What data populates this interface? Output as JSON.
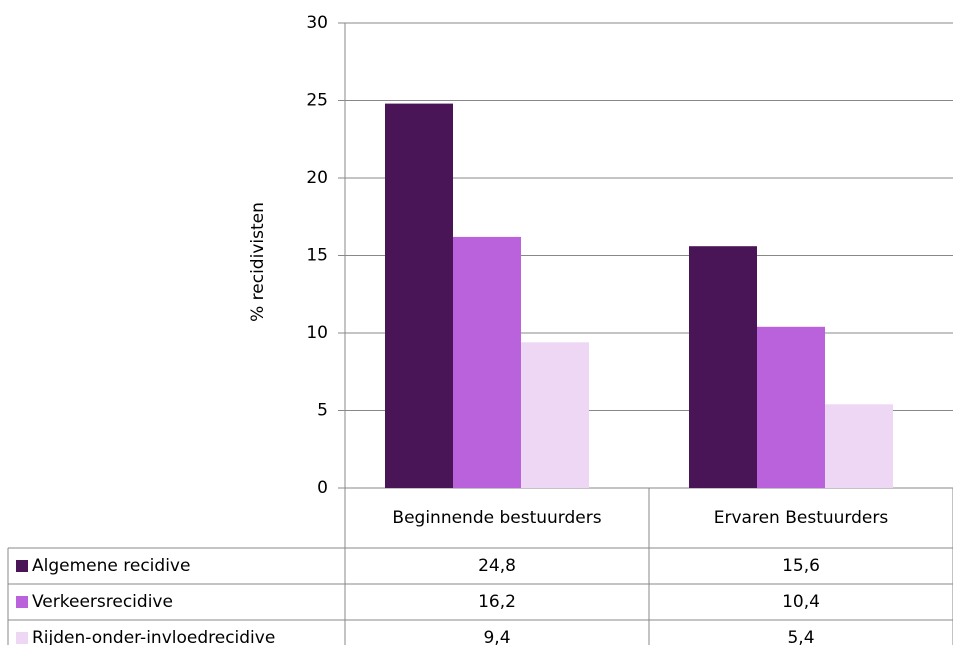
{
  "chart_data": {
    "type": "bar",
    "y_label": "% recidivisten",
    "categories": [
      "Beginnende bestuurders",
      "Ervaren Bestuurders"
    ],
    "series": [
      {
        "name": "Algemene recidive",
        "color": "#4a1557",
        "values": [
          24.8,
          15.6
        ],
        "value_labels": [
          "24,8",
          "15,6"
        ]
      },
      {
        "name": "Verkeersrecidive",
        "color": "#b962dc",
        "values": [
          16.2,
          10.4
        ],
        "value_labels": [
          "16,2",
          "10,4"
        ]
      },
      {
        "name": "Rijden-onder-invloedrecidive",
        "color": "#eed6f5",
        "values": [
          9.4,
          5.4
        ],
        "value_labels": [
          "9,4",
          "5,4"
        ]
      }
    ],
    "ylim": [
      0,
      30
    ],
    "yticks": [
      0,
      5,
      10,
      15,
      20,
      25,
      30
    ],
    "grid": true
  }
}
